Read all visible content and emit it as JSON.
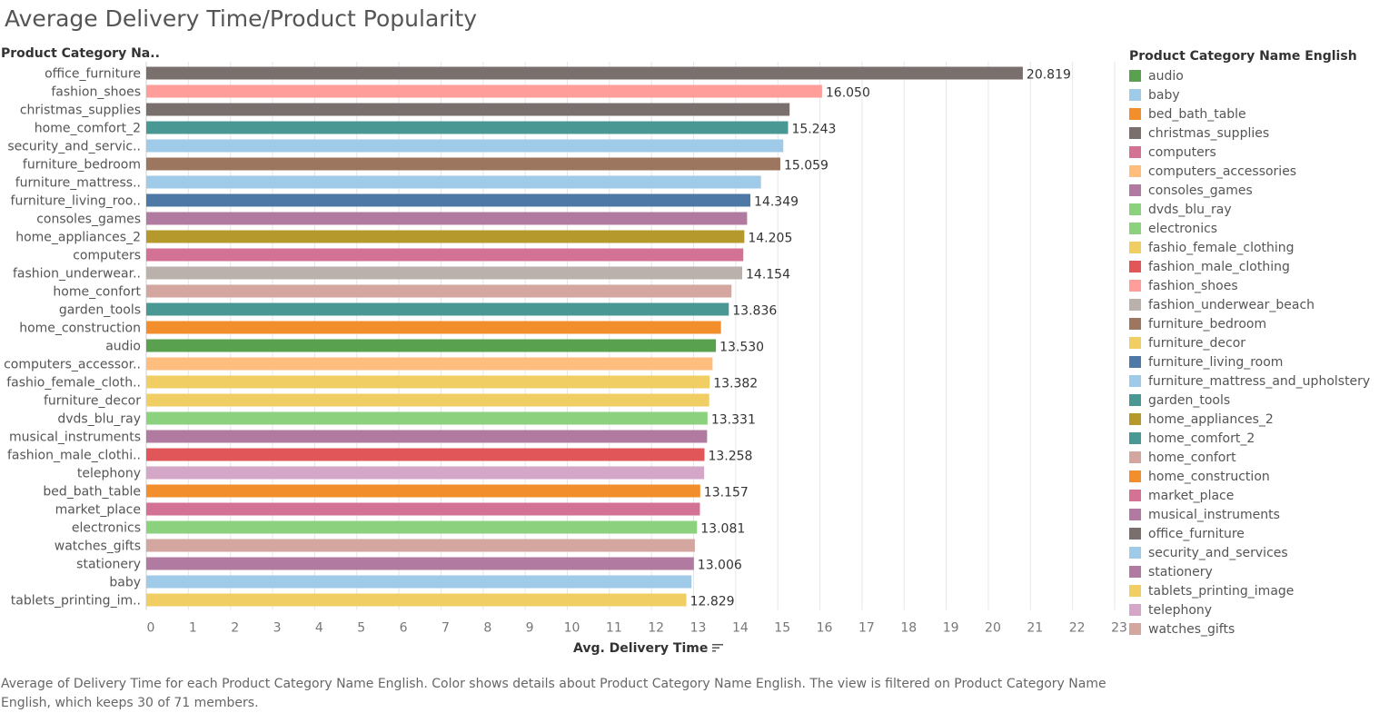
{
  "title": "Average Delivery Time/Product Popularity",
  "row_header": "Product Category Na..",
  "x_axis_title": "Avg. Delivery Time",
  "legend_title": "Product Category Name English",
  "caption": "Average of Delivery Time for each Product Category Name English.  Color shows details about Product Category Name English. The view is filtered on Product Category Name English, which keeps 30 of 71 members.",
  "chart_data": {
    "type": "bar",
    "orientation": "horizontal",
    "title": "Average Delivery Time/Product Popularity",
    "xlabel": "Avg. Delivery Time",
    "ylabel": "Product Category Na..",
    "xlim": [
      0,
      23
    ],
    "x_ticks": [
      "0",
      "1",
      "2",
      "3",
      "4",
      "5",
      "6",
      "7",
      "8",
      "9",
      "10",
      "11",
      "12",
      "13",
      "14",
      "15",
      "16",
      "17",
      "18",
      "19",
      "20",
      "21",
      "22",
      "23"
    ],
    "grid": "vertical",
    "legend_position": "right",
    "bars": [
      {
        "label": "office_furniture",
        "value": 20.819,
        "data_label": "20.819",
        "color": "#79706e"
      },
      {
        "label": "fashion_shoes",
        "value": 16.05,
        "data_label": "16.050",
        "color": "#ff9d9a"
      },
      {
        "label": "christmas_supplies",
        "value": 15.28,
        "data_label": "",
        "color": "#79706e"
      },
      {
        "label": "home_comfort_2",
        "value": 15.243,
        "data_label": "15.243",
        "color": "#499894"
      },
      {
        "label": "security_and_servic..",
        "value": 15.13,
        "data_label": "",
        "color": "#a0cbe8"
      },
      {
        "label": "furniture_bedroom",
        "value": 15.059,
        "data_label": "15.059",
        "color": "#9d7660"
      },
      {
        "label": "furniture_mattress..",
        "value": 14.6,
        "data_label": "",
        "color": "#a0cbe8"
      },
      {
        "label": "furniture_living_roo..",
        "value": 14.349,
        "data_label": "14.349",
        "color": "#4e79a7"
      },
      {
        "label": "consoles_games",
        "value": 14.27,
        "data_label": "",
        "color": "#b07aa1"
      },
      {
        "label": "home_appliances_2",
        "value": 14.205,
        "data_label": "14.205",
        "color": "#b6992d"
      },
      {
        "label": "computers",
        "value": 14.18,
        "data_label": "",
        "color": "#d37295"
      },
      {
        "label": "fashion_underwear..",
        "value": 14.154,
        "data_label": "14.154",
        "color": "#bab0ac"
      },
      {
        "label": "home_confort",
        "value": 13.9,
        "data_label": "",
        "color": "#d4a6a0"
      },
      {
        "label": "garden_tools",
        "value": 13.836,
        "data_label": "13.836",
        "color": "#499894"
      },
      {
        "label": "home_construction",
        "value": 13.65,
        "data_label": "",
        "color": "#f28e2b"
      },
      {
        "label": "audio",
        "value": 13.53,
        "data_label": "13.530",
        "color": "#59a14f"
      },
      {
        "label": "computers_accessor..",
        "value": 13.45,
        "data_label": "",
        "color": "#ffbe7d"
      },
      {
        "label": "fashio_female_cloth..",
        "value": 13.382,
        "data_label": "13.382",
        "color": "#f1ce63"
      },
      {
        "label": "furniture_decor",
        "value": 13.37,
        "data_label": "",
        "color": "#f1ce63"
      },
      {
        "label": "dvds_blu_ray",
        "value": 13.331,
        "data_label": "13.331",
        "color": "#8cd17d"
      },
      {
        "label": "musical_instruments",
        "value": 13.32,
        "data_label": "",
        "color": "#b07aa1"
      },
      {
        "label": "fashion_male_clothi..",
        "value": 13.258,
        "data_label": "13.258",
        "color": "#e15759"
      },
      {
        "label": "telephony",
        "value": 13.25,
        "data_label": "",
        "color": "#d4a6c8"
      },
      {
        "label": "bed_bath_table",
        "value": 13.157,
        "data_label": "13.157",
        "color": "#f28e2b"
      },
      {
        "label": "market_place",
        "value": 13.15,
        "data_label": "",
        "color": "#d37295"
      },
      {
        "label": "electronics",
        "value": 13.081,
        "data_label": "13.081",
        "color": "#8cd17d"
      },
      {
        "label": "watches_gifts",
        "value": 13.03,
        "data_label": "",
        "color": "#d4a6a0"
      },
      {
        "label": "stationery",
        "value": 13.006,
        "data_label": "13.006",
        "color": "#b07aa1"
      },
      {
        "label": "baby",
        "value": 12.95,
        "data_label": "",
        "color": "#a0cbe8"
      },
      {
        "label": "tablets_printing_im..",
        "value": 12.829,
        "data_label": "12.829",
        "color": "#f1ce63"
      }
    ]
  },
  "legend": [
    {
      "label": "audio",
      "color": "#59a14f"
    },
    {
      "label": "baby",
      "color": "#a0cbe8"
    },
    {
      "label": "bed_bath_table",
      "color": "#f28e2b"
    },
    {
      "label": "christmas_supplies",
      "color": "#79706e"
    },
    {
      "label": "computers",
      "color": "#d37295"
    },
    {
      "label": "computers_accessories",
      "color": "#ffbe7d"
    },
    {
      "label": "consoles_games",
      "color": "#b07aa1"
    },
    {
      "label": "dvds_blu_ray",
      "color": "#8cd17d"
    },
    {
      "label": "electronics",
      "color": "#8cd17d"
    },
    {
      "label": "fashio_female_clothing",
      "color": "#f1ce63"
    },
    {
      "label": "fashion_male_clothing",
      "color": "#e15759"
    },
    {
      "label": "fashion_shoes",
      "color": "#ff9d9a"
    },
    {
      "label": "fashion_underwear_beach",
      "color": "#bab0ac"
    },
    {
      "label": "furniture_bedroom",
      "color": "#9d7660"
    },
    {
      "label": "furniture_decor",
      "color": "#f1ce63"
    },
    {
      "label": "furniture_living_room",
      "color": "#4e79a7"
    },
    {
      "label": "furniture_mattress_and_upholstery",
      "color": "#a0cbe8"
    },
    {
      "label": "garden_tools",
      "color": "#499894"
    },
    {
      "label": "home_appliances_2",
      "color": "#b6992d"
    },
    {
      "label": "home_comfort_2",
      "color": "#499894"
    },
    {
      "label": "home_confort",
      "color": "#d4a6a0"
    },
    {
      "label": "home_construction",
      "color": "#f28e2b"
    },
    {
      "label": "market_place",
      "color": "#d37295"
    },
    {
      "label": "musical_instruments",
      "color": "#b07aa1"
    },
    {
      "label": "office_furniture",
      "color": "#79706e"
    },
    {
      "label": "security_and_services",
      "color": "#a0cbe8"
    },
    {
      "label": "stationery",
      "color": "#b07aa1"
    },
    {
      "label": "tablets_printing_image",
      "color": "#f1ce63"
    },
    {
      "label": "telephony",
      "color": "#d4a6c8"
    },
    {
      "label": "watches_gifts",
      "color": "#d4a6a0"
    }
  ],
  "icons": {
    "sort": "sort-descending-icon"
  }
}
